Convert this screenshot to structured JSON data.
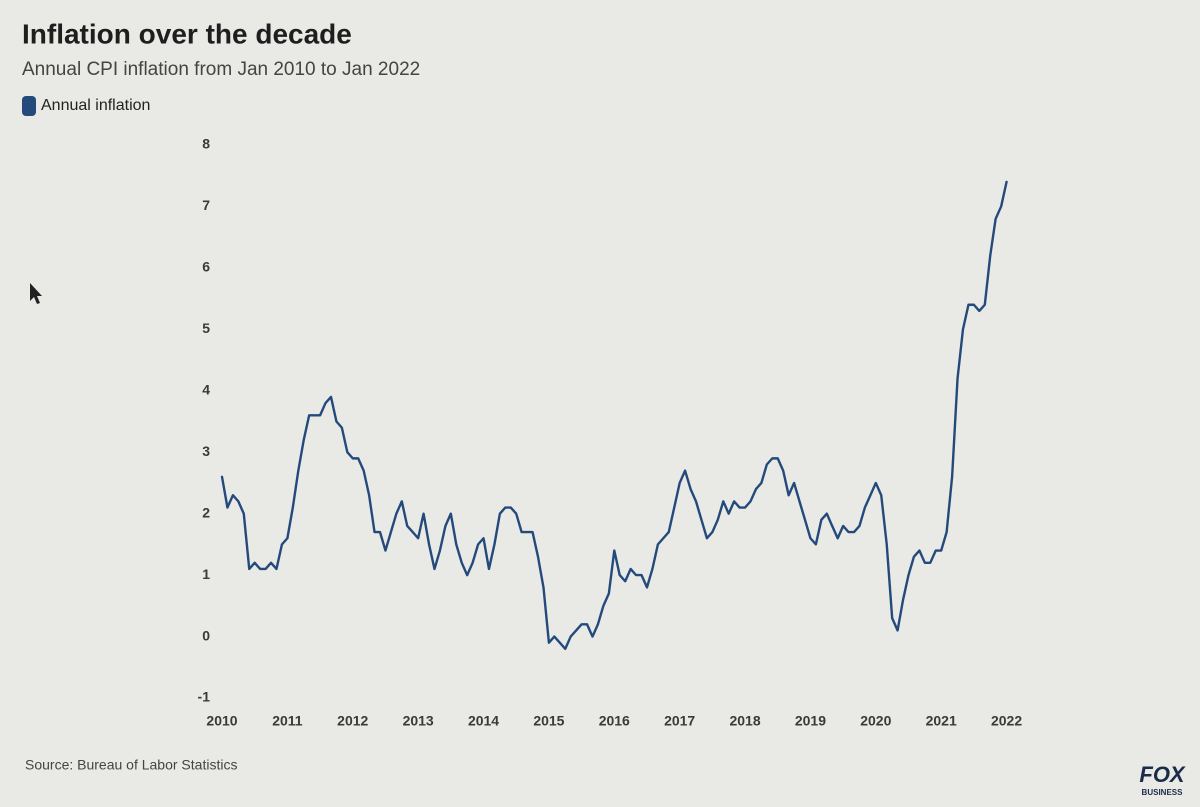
{
  "chart_data": {
    "type": "line",
    "title": "Inflation over the decade",
    "subtitle": "Annual CPI inflation from Jan 2010 to Jan 2022",
    "source": "Source: Bureau of Labor Statistics",
    "xlim": [
      2010,
      2022.083
    ],
    "xticks": [
      2010,
      2011,
      2012,
      2013,
      2014,
      2015,
      2016,
      2017,
      2018,
      2019,
      2020,
      2021,
      2022
    ],
    "ylim": [
      -1,
      8
    ],
    "yticks": [
      -1,
      0,
      1,
      2,
      3,
      4,
      5,
      6,
      7,
      8
    ],
    "grid": false,
    "legend": "top-left",
    "x": [
      2010,
      2010.083,
      2010.167,
      2010.25,
      2010.333,
      2010.417,
      2010.5,
      2010.583,
      2010.667,
      2010.75,
      2010.833,
      2010.917,
      2011,
      2011.083,
      2011.167,
      2011.25,
      2011.333,
      2011.417,
      2011.5,
      2011.583,
      2011.667,
      2011.75,
      2011.833,
      2011.917,
      2012,
      2012.083,
      2012.167,
      2012.25,
      2012.333,
      2012.417,
      2012.5,
      2012.583,
      2012.667,
      2012.75,
      2012.833,
      2012.917,
      2013,
      2013.083,
      2013.167,
      2013.25,
      2013.333,
      2013.417,
      2013.5,
      2013.583,
      2013.667,
      2013.75,
      2013.833,
      2013.917,
      2014,
      2014.083,
      2014.167,
      2014.25,
      2014.333,
      2014.417,
      2014.5,
      2014.583,
      2014.667,
      2014.75,
      2014.833,
      2014.917,
      2015,
      2015.083,
      2015.167,
      2015.25,
      2015.333,
      2015.417,
      2015.5,
      2015.583,
      2015.667,
      2015.75,
      2015.833,
      2015.917,
      2016,
      2016.083,
      2016.167,
      2016.25,
      2016.333,
      2016.417,
      2016.5,
      2016.583,
      2016.667,
      2016.75,
      2016.833,
      2016.917,
      2017,
      2017.083,
      2017.167,
      2017.25,
      2017.333,
      2017.417,
      2017.5,
      2017.583,
      2017.667,
      2017.75,
      2017.833,
      2017.917,
      2018,
      2018.083,
      2018.167,
      2018.25,
      2018.333,
      2018.417,
      2018.5,
      2018.583,
      2018.667,
      2018.75,
      2018.833,
      2018.917,
      2019,
      2019.083,
      2019.167,
      2019.25,
      2019.333,
      2019.417,
      2019.5,
      2019.583,
      2019.667,
      2019.75,
      2019.833,
      2019.917,
      2020,
      2020.083,
      2020.167,
      2020.25,
      2020.333,
      2020.417,
      2020.5,
      2020.583,
      2020.667,
      2020.75,
      2020.833,
      2020.917,
      2021,
      2021.083,
      2021.167,
      2021.25,
      2021.333,
      2021.417,
      2021.5,
      2021.583,
      2021.667,
      2021.75,
      2021.833,
      2021.917,
      2022
    ],
    "series": [
      {
        "name": "Annual inflation",
        "color": "#244a7c",
        "values": [
          2.6,
          2.1,
          2.3,
          2.2,
          2.0,
          1.1,
          1.2,
          1.1,
          1.1,
          1.2,
          1.1,
          1.5,
          1.6,
          2.1,
          2.7,
          3.2,
          3.6,
          3.6,
          3.6,
          3.8,
          3.9,
          3.5,
          3.4,
          3.0,
          2.9,
          2.9,
          2.7,
          2.3,
          1.7,
          1.7,
          1.4,
          1.7,
          2.0,
          2.2,
          1.8,
          1.7,
          1.6,
          2.0,
          1.5,
          1.1,
          1.4,
          1.8,
          2.0,
          1.5,
          1.2,
          1.0,
          1.2,
          1.5,
          1.6,
          1.1,
          1.5,
          2.0,
          2.1,
          2.1,
          2.0,
          1.7,
          1.7,
          1.7,
          1.3,
          0.8,
          -0.1,
          0.0,
          -0.1,
          -0.2,
          0.0,
          0.1,
          0.2,
          0.2,
          0.0,
          0.2,
          0.5,
          0.7,
          1.4,
          1.0,
          0.9,
          1.1,
          1.0,
          1.0,
          0.8,
          1.1,
          1.5,
          1.6,
          1.7,
          2.1,
          2.5,
          2.7,
          2.4,
          2.2,
          1.9,
          1.6,
          1.7,
          1.9,
          2.2,
          2.0,
          2.2,
          2.1,
          2.1,
          2.2,
          2.4,
          2.5,
          2.8,
          2.9,
          2.9,
          2.7,
          2.3,
          2.5,
          2.2,
          1.9,
          1.6,
          1.5,
          1.9,
          2.0,
          1.8,
          1.6,
          1.8,
          1.7,
          1.7,
          1.8,
          2.1,
          2.3,
          2.5,
          2.3,
          1.5,
          0.3,
          0.1,
          0.6,
          1.0,
          1.3,
          1.4,
          1.2,
          1.2,
          1.4,
          1.4,
          1.7,
          2.6,
          4.2,
          5.0,
          5.4,
          5.4,
          5.3,
          5.4,
          6.2,
          6.8,
          7.0,
          7.4
        ]
      }
    ]
  },
  "logo": {
    "main": "FOX",
    "sub": "BUSINESS"
  }
}
